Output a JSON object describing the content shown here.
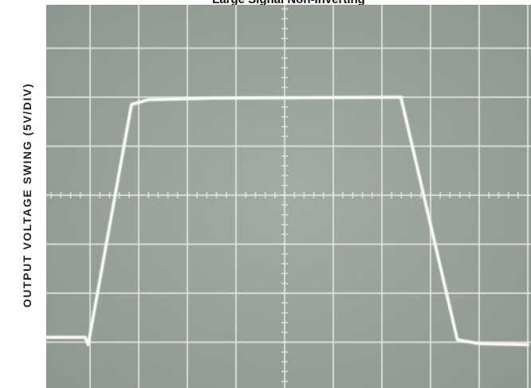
{
  "chart_data": {
    "type": "line",
    "title": "Large Signal Non-Inverting",
    "xlabel": "",
    "ylabel": "OUTPUT VOLTAGE SWING (5V/DIV)",
    "grid": true,
    "x_divisions": 10,
    "y_divisions": 8,
    "xlim": [
      0,
      10
    ],
    "ylim": [
      0,
      8
    ],
    "series": [
      {
        "name": "",
        "x": [
          0,
          0.9,
          0.96,
          1.85,
          2.2,
          3.5,
          7.4,
          7.4,
          8.55,
          9.0,
          10
        ],
        "y": [
          1.1,
          1.1,
          0.95,
          5.85,
          5.95,
          5.98,
          6.0,
          5.96,
          1.05,
          0.97,
          0.95
        ]
      }
    ],
    "colors": {
      "screen": "#9aa39a",
      "grid": "#e4e8e2",
      "trace": "#f7f8f4"
    }
  }
}
